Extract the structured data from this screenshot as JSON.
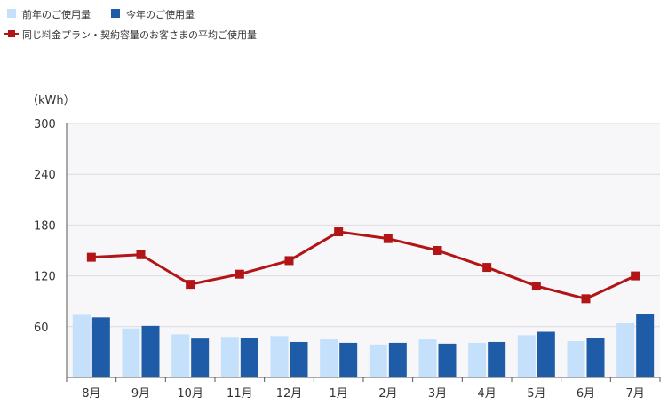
{
  "chart_data": {
    "type": "bar",
    "categories": [
      "8月",
      "9月",
      "10月",
      "11月",
      "12月",
      "1月",
      "2月",
      "3月",
      "4月",
      "5月",
      "6月",
      "7月"
    ],
    "series": [
      {
        "name": "前年のご使用量",
        "kind": "bar",
        "color": "#c5e0fb",
        "values": [
          74,
          58,
          51,
          48,
          49,
          45,
          39,
          45,
          41,
          50,
          43,
          64
        ]
      },
      {
        "name": "今年のご使用量",
        "kind": "bar",
        "color": "#1f5ca8",
        "values": [
          71,
          61,
          46,
          47,
          42,
          41,
          41,
          40,
          42,
          54,
          47,
          75
        ]
      },
      {
        "name": "同じ料金プラン・契約容量のお客さまの平均ご使用量",
        "kind": "line",
        "color": "#b21516",
        "values": [
          142,
          145,
          110,
          122,
          138,
          172,
          164,
          150,
          130,
          108,
          93,
          120
        ]
      }
    ],
    "ylabel": "（kWh）",
    "ylim": [
      0,
      300
    ],
    "yticks": [
      300,
      240,
      180,
      120,
      60
    ],
    "grid": true,
    "legend_position": "top-left"
  }
}
